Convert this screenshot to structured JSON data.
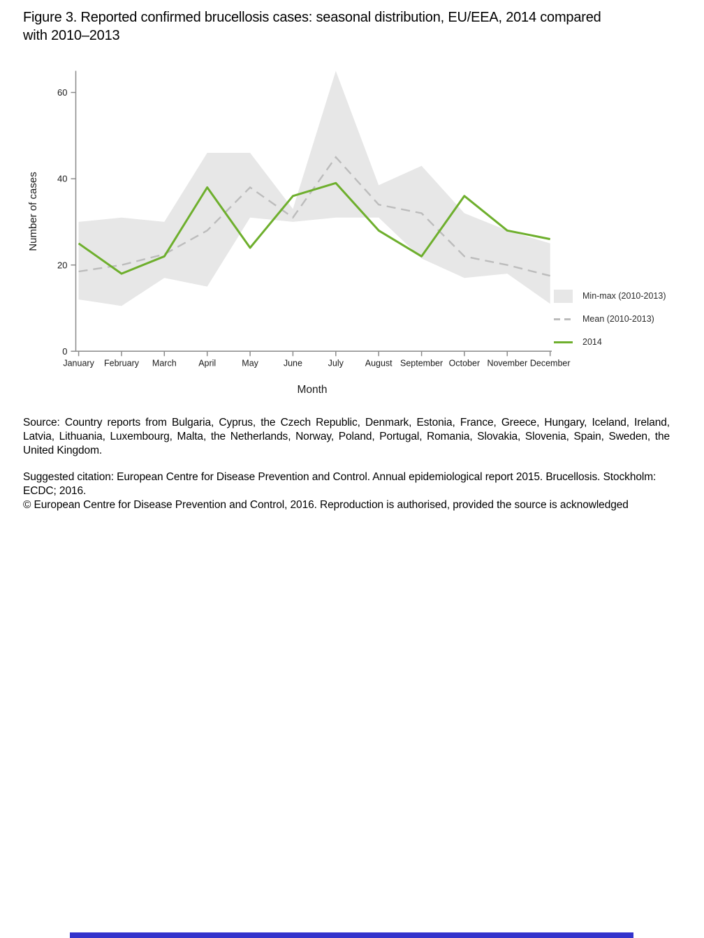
{
  "figure": {
    "title": "Figure 3. Reported confirmed brucellosis cases: seasonal distribution, EU/EEA, 2014 compared with 2010–2013"
  },
  "chart_data": {
    "type": "line",
    "title": "Reported confirmed brucellosis cases: seasonal distribution, EU/EEA, 2014 compared with 2010-2013",
    "categories": [
      "January",
      "February",
      "March",
      "April",
      "May",
      "June",
      "July",
      "August",
      "September",
      "October",
      "November",
      "December"
    ],
    "series": [
      {
        "name": "Min-max (2010-2013)",
        "type": "band",
        "color": "#e7e7e7",
        "min": [
          12,
          10.5,
          17,
          15,
          31,
          30,
          31,
          31,
          21.5,
          17,
          18,
          11
        ],
        "max": [
          30,
          31,
          30,
          46,
          46,
          33,
          65,
          38.5,
          43,
          32,
          28,
          25
        ]
      },
      {
        "name": "Mean (2010-2013)",
        "type": "dashed-line",
        "color": "#bcbcbc",
        "values": [
          18.5,
          20,
          22.5,
          28,
          38,
          31,
          45,
          34,
          32,
          22,
          20,
          17.5
        ]
      },
      {
        "name": "2014",
        "type": "line",
        "color": "#6eaf2d",
        "values": [
          25,
          18,
          22,
          38,
          24,
          36,
          39,
          28,
          22,
          36,
          28,
          26
        ]
      }
    ],
    "xlabel": "Month",
    "ylabel": "Number of cases",
    "yticks": [
      0,
      20,
      40,
      60
    ],
    "ylim": [
      0,
      65
    ],
    "grid": false,
    "legend_position": "right"
  },
  "source_text": "Source: Country reports from Bulgaria, Cyprus, the Czech Republic, Denmark, Estonia, France, Greece, Hungary, Iceland, Ireland, Latvia, Lithuania, Luxembourg, Malta, the Netherlands, Norway, Poland, Portugal, Romania, Slovakia, Slovenia, Spain, Sweden, the United Kingdom.",
  "citation": {
    "suggested": "Suggested citation: European Centre for Disease Prevention and Control. Annual epidemiological report 2015. Brucellosis. Stockholm: ECDC; 2016.",
    "copyright": "© European Centre for Disease Prevention and Control, 2016. Reproduction is authorised, provided the source is acknowledged"
  },
  "footer": {
    "bar_color": "#3333cc"
  },
  "style": {
    "axis_color": "#8a8a8a",
    "tick_label_color": "#1a1a1a"
  }
}
